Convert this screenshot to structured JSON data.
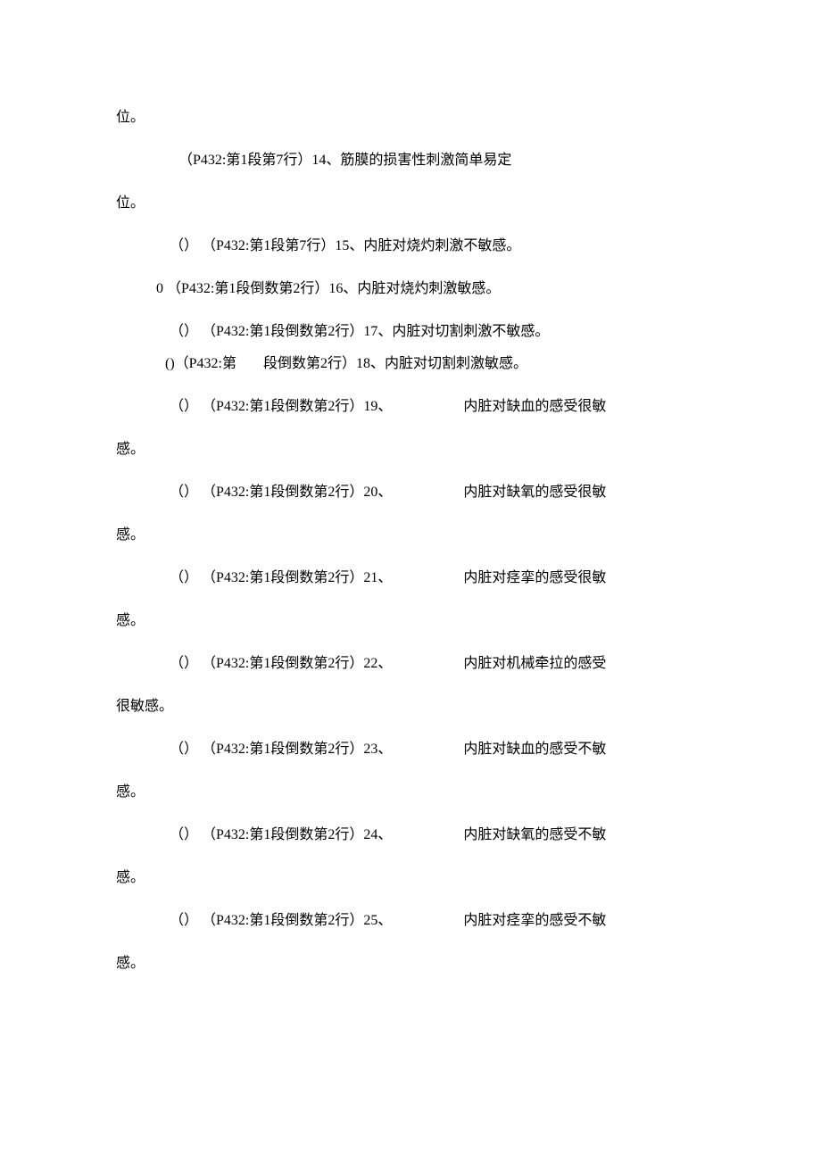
{
  "lines": [
    {
      "cls": "line indent-0",
      "text": "位。"
    },
    {
      "cls": "line indent-1",
      "text": "（P432:第1段第7行）14、筋膜的损害性刺激简单易定"
    },
    {
      "cls": "line indent-0",
      "text": "位。"
    },
    {
      "cls": "line indent-3",
      "text": "（） （P432:第1段第7行）15、内脏对烧灼刺激不敏感。"
    },
    {
      "cls": "line indent-2",
      "text": "0 （P432:第1段倒数第2行）16、内脏对烧灼刺激敏感。"
    },
    {
      "cls": "line-tight indent-3",
      "text": "（） （P432:第1段倒数第2行）17、内脏对切割刺激不敏感。"
    },
    {
      "cls": "line indent-2b",
      "pre": "()（P432:第",
      "mid": "段倒数第2行）18、内脏对切割刺激敏感。"
    },
    {
      "cls": "line indent-3",
      "pre": "（） （P432:第1段倒数第2行）19、",
      "post": "内脏对缺血的感受很敏"
    },
    {
      "cls": "line indent-0",
      "text": "感。"
    },
    {
      "cls": "line indent-3",
      "pre": "（） （P432:第1段倒数第2行）20、",
      "post": "内脏对缺氧的感受很敏"
    },
    {
      "cls": "line indent-0",
      "text": "感。"
    },
    {
      "cls": "line indent-3",
      "pre": "（） （P432:第1段倒数第2行）21、",
      "post": "内脏对痉挛的感受很敏"
    },
    {
      "cls": "line indent-0",
      "text": "感。"
    },
    {
      "cls": "line indent-3",
      "pre": "（） （P432:第1段倒数第2行）22、",
      "post": "内脏对机械牵拉的感受"
    },
    {
      "cls": "line indent-0",
      "text": "很敏感。"
    },
    {
      "cls": "line indent-3",
      "pre": "（） （P432:第1段倒数第2行）23、",
      "post": "内脏对缺血的感受不敏"
    },
    {
      "cls": "line indent-0",
      "text": "感。"
    },
    {
      "cls": "line indent-3",
      "pre": "（） （P432:第1段倒数第2行）24、",
      "post": "内脏对缺氧的感受不敏"
    },
    {
      "cls": "line indent-0",
      "text": "感。"
    },
    {
      "cls": "line indent-3",
      "pre": "（） （P432:第1段倒数第2行）25、",
      "post": "内脏对痉挛的感受不敏"
    },
    {
      "cls": "line indent-0",
      "text": "感。"
    }
  ]
}
